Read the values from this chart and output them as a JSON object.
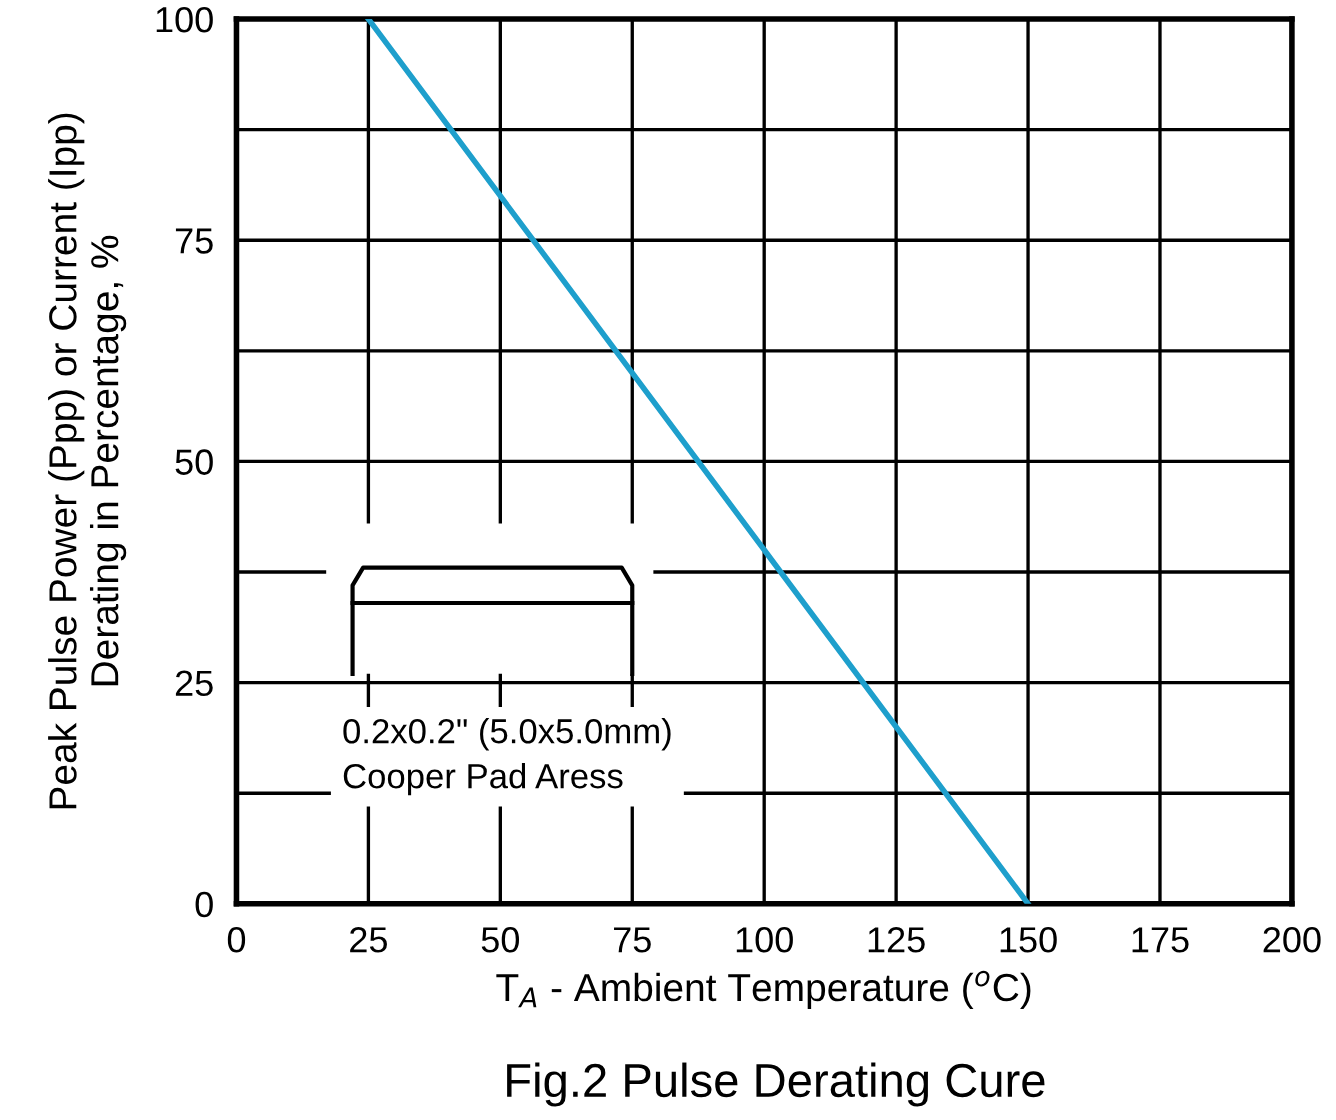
{
  "chart_data": {
    "type": "line",
    "title": "Fig.2 Pulse Derating Cure",
    "xlabel": "T$_{A}$ - Ambient Temperature ($^{o}$C)",
    "ylabel": "Peak Pulse Power (Ppp) or Current (Ipp)\nDerating in Percentage, %",
    "x": [
      25,
      150
    ],
    "series": [
      {
        "color": "#1e9fcc",
        "values": [
          100,
          0
        ]
      }
    ],
    "xlim": [
      0,
      200
    ],
    "xticks": [
      0,
      25,
      50,
      75,
      100,
      125,
      150,
      175,
      200
    ],
    "ylim": [
      0,
      100
    ],
    "yticks": [
      0,
      {
        "value": 12.5,
        "label": null
      },
      25,
      {
        "value": 37.5,
        "label": null
      },
      50,
      {
        "value": 62.5,
        "label": null
      },
      75,
      {
        "value": 87.5,
        "label": null
      },
      100
    ],
    "grid": true,
    "marker": "none",
    "line_style": "solid",
    "annotations": [
      "0.2x0.2\" (5.0x5.0mm)\nCooper Pad Aress"
    ]
  }
}
